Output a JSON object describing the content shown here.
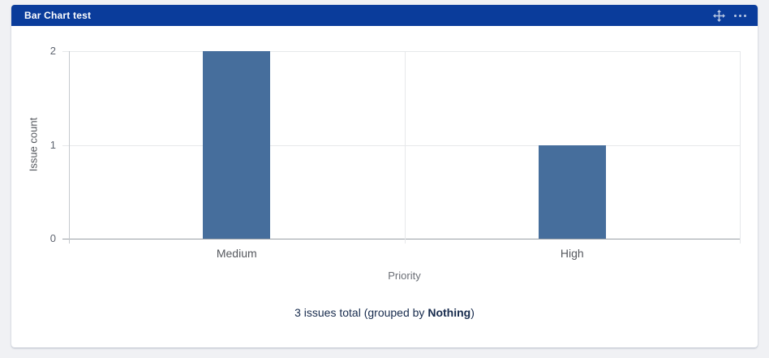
{
  "widget": {
    "title": "Bar Chart test",
    "icons": {
      "move": "move-icon",
      "more_options": "ellipsis-icon"
    }
  },
  "colors": {
    "page_background": "#f0f1f4",
    "card_background": "#ffffff",
    "header": "#0a3c9b",
    "bar": "#466e9c",
    "footer_text": "#172b4d"
  },
  "chart_data": {
    "type": "bar",
    "categories": [
      "Medium",
      "High"
    ],
    "values": [
      2,
      1
    ],
    "title": "",
    "xlabel": "Priority",
    "ylabel": "Issue count",
    "ylim": [
      0,
      2
    ],
    "yticks": [
      0,
      1,
      2
    ],
    "grid": true,
    "legend": "none",
    "bar_color": "#466e9c"
  },
  "footer": {
    "prefix": "3 issues total (grouped by ",
    "emphasis": "Nothing",
    "suffix": ")"
  }
}
